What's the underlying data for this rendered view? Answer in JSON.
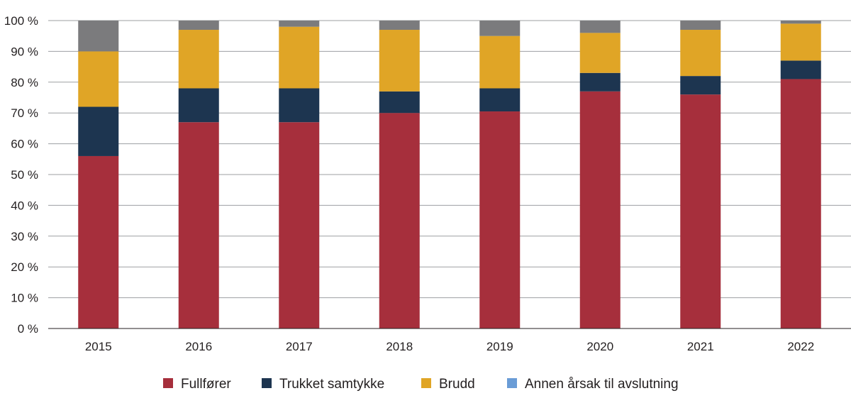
{
  "chart_data": {
    "type": "bar",
    "stacked": true,
    "categories": [
      "2015",
      "2016",
      "2017",
      "2018",
      "2019",
      "2020",
      "2021",
      "2022"
    ],
    "series": [
      {
        "name": "Fullfører",
        "color": "#a62f3c",
        "values": [
          56,
          67,
          67,
          70,
          70.5,
          77,
          76,
          81
        ]
      },
      {
        "name": "Trukket samtykke",
        "color": "#1d3550",
        "values": [
          16,
          11,
          11,
          7,
          7.5,
          6,
          6,
          6
        ]
      },
      {
        "name": "Brudd",
        "color": "#e0a526",
        "values": [
          18,
          19,
          20,
          20,
          17,
          13,
          15,
          12
        ]
      },
      {
        "name": "Annen årsak til avslutning",
        "color": "#6a9cd6",
        "values": [
          0,
          0,
          0,
          0,
          0,
          0,
          0,
          0
        ]
      },
      {
        "color": "#7b7b7d",
        "values": [
          10,
          3,
          2,
          3,
          5,
          4,
          3,
          1
        ]
      }
    ],
    "ylim": [
      0,
      100
    ],
    "yticks": [
      "0 %",
      "10 %",
      "20 %",
      "30 %",
      "40 %",
      "50 %",
      "60 %",
      "70 %",
      "80 %",
      "90 %",
      "100 %"
    ],
    "grid": true,
    "legend_position": "bottom"
  }
}
